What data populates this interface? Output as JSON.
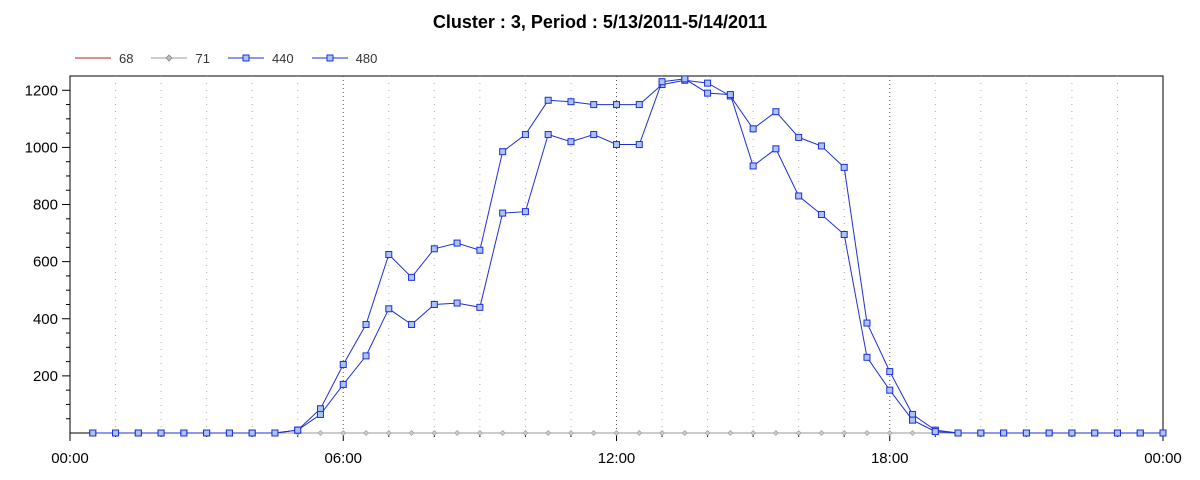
{
  "title": "Cluster : 3, Period : 5/13/2011-5/14/2011",
  "legend": [
    {
      "name": "68",
      "color": "#b22222",
      "marker": "none"
    },
    {
      "name": "71",
      "color": "#999999",
      "marker": "diamond"
    },
    {
      "name": "440",
      "color": "#1f2fd6",
      "marker": "square"
    },
    {
      "name": "480",
      "color": "#1f2fd6",
      "marker": "square"
    }
  ],
  "chart_data": {
    "type": "line",
    "title": "Cluster : 3, Period : 5/13/2011-5/14/2011",
    "xlabel": "",
    "ylabel": "",
    "x_tick_labels": [
      "00:00",
      "06:00",
      "12:00",
      "18:00",
      "00:00"
    ],
    "x_range_hours": [
      0,
      24
    ],
    "ylim": [
      0,
      1250
    ],
    "y_ticks": [
      200,
      400,
      600,
      800,
      1000,
      1200
    ],
    "grid": "vertical dotted lines",
    "legend_position": "top-left",
    "x": [
      0.5,
      1.0,
      1.5,
      2.0,
      2.5,
      3.0,
      3.5,
      4.0,
      4.5,
      5.0,
      5.5,
      6.0,
      6.5,
      7.0,
      7.5,
      8.0,
      8.5,
      9.0,
      9.5,
      10.0,
      10.5,
      11.0,
      11.5,
      12.0,
      12.5,
      13.0,
      13.5,
      14.0,
      14.5,
      15.0,
      15.5,
      16.0,
      16.5,
      17.0,
      17.5,
      18.0,
      18.5,
      19.0,
      19.5,
      20.0,
      20.5,
      21.0,
      21.5,
      22.0,
      22.5,
      23.0,
      23.5,
      24.0
    ],
    "series": [
      {
        "name": "68",
        "color": "#b22222",
        "values": [
          0,
          0,
          0,
          0,
          0,
          0,
          0,
          0,
          0,
          0,
          0,
          0,
          0,
          0,
          0,
          0,
          0,
          0,
          0,
          0,
          0,
          0,
          0,
          0,
          0,
          0,
          0,
          0,
          0,
          0,
          0,
          0,
          0,
          0,
          0,
          0,
          0,
          0,
          0,
          0,
          0,
          0,
          0,
          0,
          0,
          0,
          0,
          0
        ]
      },
      {
        "name": "71",
        "color": "#999999",
        "values": [
          0,
          0,
          0,
          0,
          0,
          0,
          0,
          0,
          0,
          0,
          0,
          0,
          0,
          0,
          0,
          0,
          0,
          0,
          0,
          0,
          0,
          0,
          0,
          0,
          0,
          0,
          0,
          0,
          0,
          0,
          0,
          0,
          0,
          0,
          0,
          0,
          0,
          0,
          0,
          0,
          0,
          0,
          0,
          0,
          0,
          0,
          0,
          0
        ]
      },
      {
        "name": "440",
        "color": "#1f2fd6",
        "values": [
          0,
          0,
          0,
          0,
          0,
          0,
          0,
          0,
          0,
          10,
          85,
          240,
          380,
          625,
          545,
          645,
          665,
          640,
          985,
          1045,
          1165,
          1160,
          1150,
          1150,
          1150,
          1220,
          1235,
          1225,
          1180,
          1065,
          1125,
          1035,
          1005,
          930,
          385,
          215,
          65,
          10,
          0,
          0,
          0,
          0,
          0,
          0,
          0,
          0,
          0,
          0
        ]
      },
      {
        "name": "480",
        "color": "#1f2fd6",
        "values": [
          0,
          0,
          0,
          0,
          0,
          0,
          0,
          0,
          0,
          10,
          65,
          170,
          270,
          435,
          380,
          450,
          455,
          440,
          770,
          775,
          1045,
          1020,
          1045,
          1010,
          1010,
          1230,
          1240,
          1190,
          1185,
          935,
          995,
          830,
          765,
          695,
          265,
          150,
          45,
          5,
          0,
          0,
          0,
          0,
          0,
          0,
          0,
          0,
          0,
          0
        ]
      }
    ]
  }
}
